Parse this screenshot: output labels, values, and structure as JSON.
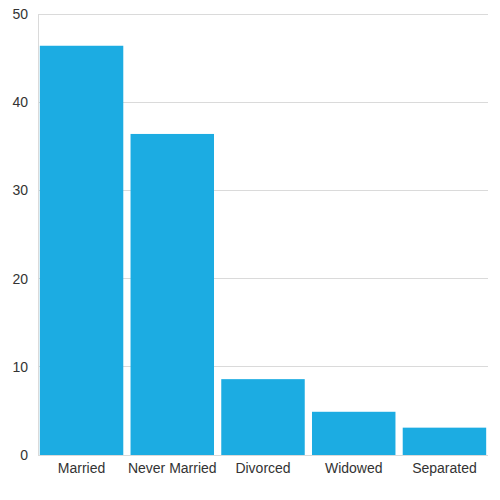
{
  "chart_data": {
    "type": "bar",
    "categories": [
      "Married",
      "Never Married",
      "Divorced",
      "Widowed",
      "Separated"
    ],
    "values": [
      46.4,
      36.4,
      8.6,
      4.9,
      3.1
    ],
    "color": "#1cace2",
    "ylim": [
      0,
      50
    ],
    "yticks": [
      0,
      10,
      20,
      30,
      40,
      50
    ],
    "grid": true
  }
}
